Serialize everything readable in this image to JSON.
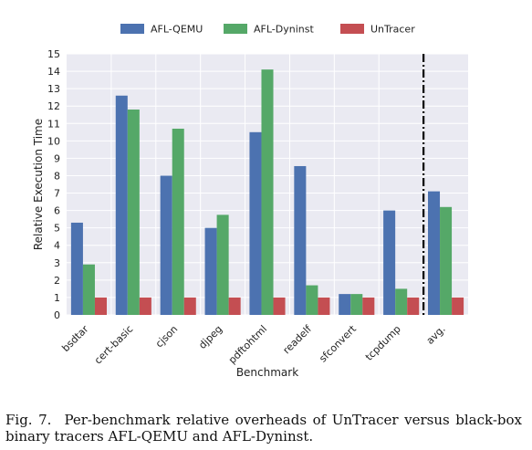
{
  "chart_data": {
    "type": "bar",
    "categories": [
      "bsdtar",
      "cert-basic",
      "cjson",
      "djpeg",
      "pdftohtml",
      "readelf",
      "sfconvert",
      "tcpdump",
      "avg."
    ],
    "series": [
      {
        "name": "AFL-QEMU",
        "color": "#4c72b0",
        "values": [
          5.3,
          12.6,
          8.0,
          5.0,
          10.5,
          8.55,
          1.2,
          6.0,
          7.1
        ]
      },
      {
        "name": "AFL-Dyninst",
        "color": "#55a868",
        "values": [
          2.9,
          11.8,
          10.7,
          5.75,
          14.1,
          1.7,
          1.2,
          1.5,
          6.2
        ]
      },
      {
        "name": "UnTracer",
        "color": "#c44e52",
        "values": [
          1.0,
          1.0,
          1.0,
          1.0,
          1.0,
          1.0,
          1.0,
          1.0,
          1.0
        ]
      }
    ],
    "xlabel": "Benchmark",
    "ylabel": "Relative Execution Time",
    "ylim": [
      0,
      15
    ],
    "yticks": [
      0,
      1,
      2,
      3,
      4,
      5,
      6,
      7,
      8,
      9,
      10,
      11,
      12,
      13,
      14,
      15
    ],
    "grid": true,
    "legend_position": "top",
    "separator_before_category": "avg."
  },
  "caption": {
    "label": "Fig. 7.",
    "text": "Per-benchmark relative overheads of UnTracer versus black-box binary tracers AFL-QEMU and AFL-Dyninst."
  }
}
